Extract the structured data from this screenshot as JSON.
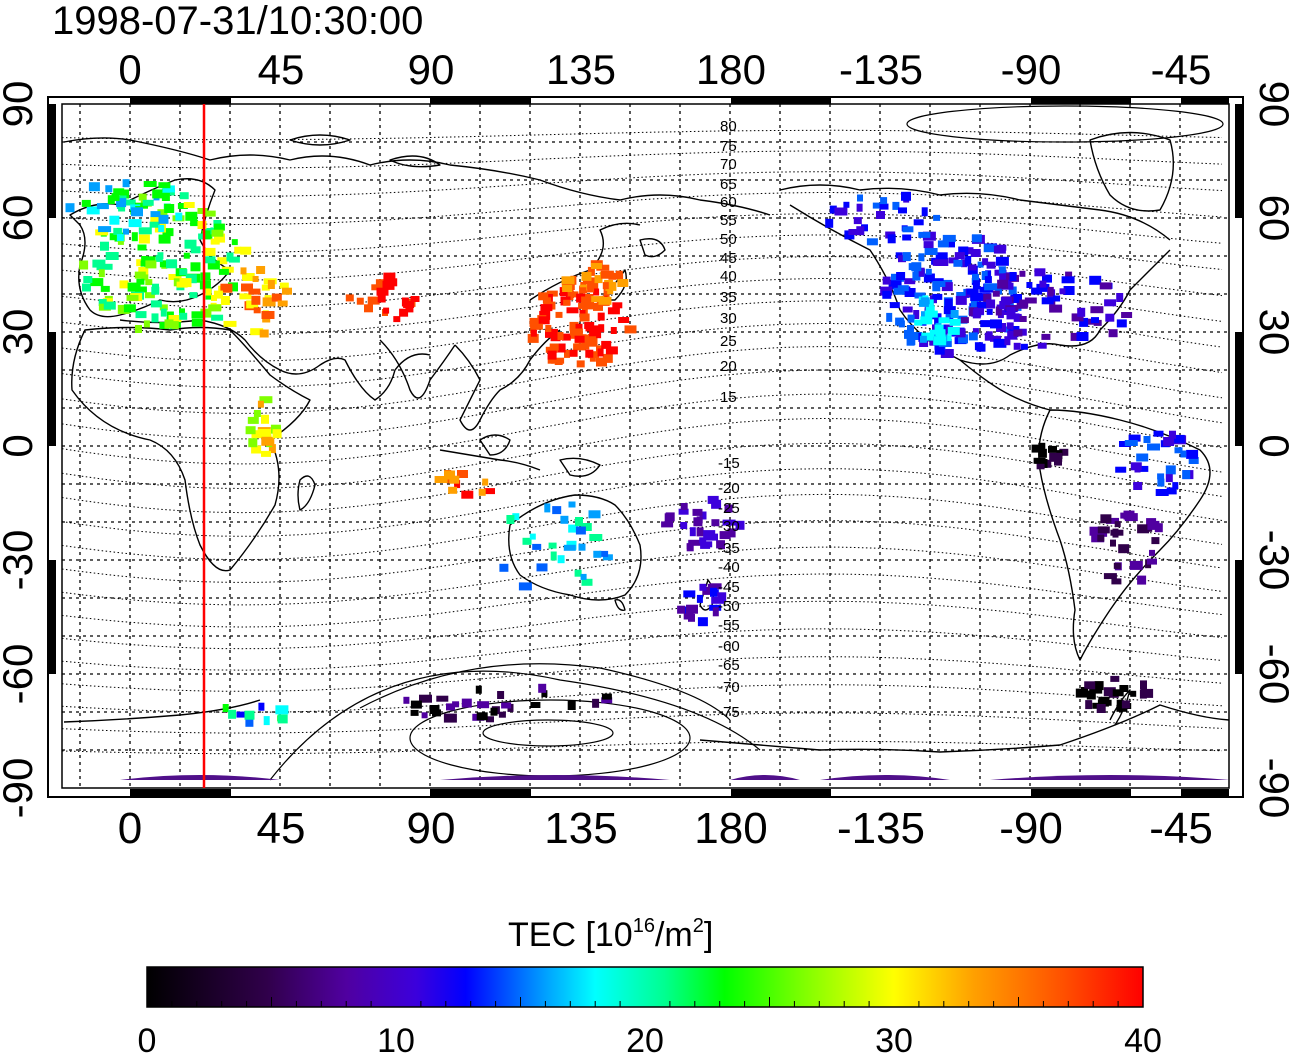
{
  "title": "1998-07-31/10:30:00",
  "map": {
    "lon_ticks": [
      "0",
      "45",
      "90",
      "135",
      "180",
      "-135",
      "-90",
      "-45"
    ],
    "lat_ticks": [
      "90",
      "60",
      "30",
      "0",
      "-30",
      "-60",
      "-90"
    ],
    "contour_labels_north": [
      "80",
      "75",
      "70",
      "65",
      "60",
      "55",
      "50",
      "45",
      "40",
      "35",
      "30",
      "25",
      "20",
      "15"
    ],
    "contour_labels_south": [
      "-15",
      "-20",
      "-25",
      "-30",
      "-35",
      "-40",
      "-45",
      "-50",
      "-55",
      "-60",
      "-65",
      "-70",
      "-75"
    ],
    "terminator_color": "#ff0000"
  },
  "colorbar": {
    "label_main": "TEC  [10",
    "label_sup1": "16",
    "label_mid": "/m",
    "label_sup2": "2",
    "label_end": "]",
    "ticks": [
      "0",
      "10",
      "20",
      "30",
      "40"
    ],
    "colors": [
      "#000000",
      "#30004a",
      "#5000a0",
      "#3c00dc",
      "#0000ff",
      "#0060ff",
      "#00a0ff",
      "#00ffff",
      "#00ff90",
      "#00ff00",
      "#80ff00",
      "#ffff00",
      "#ffa000",
      "#ff5000",
      "#ff0000"
    ]
  }
}
